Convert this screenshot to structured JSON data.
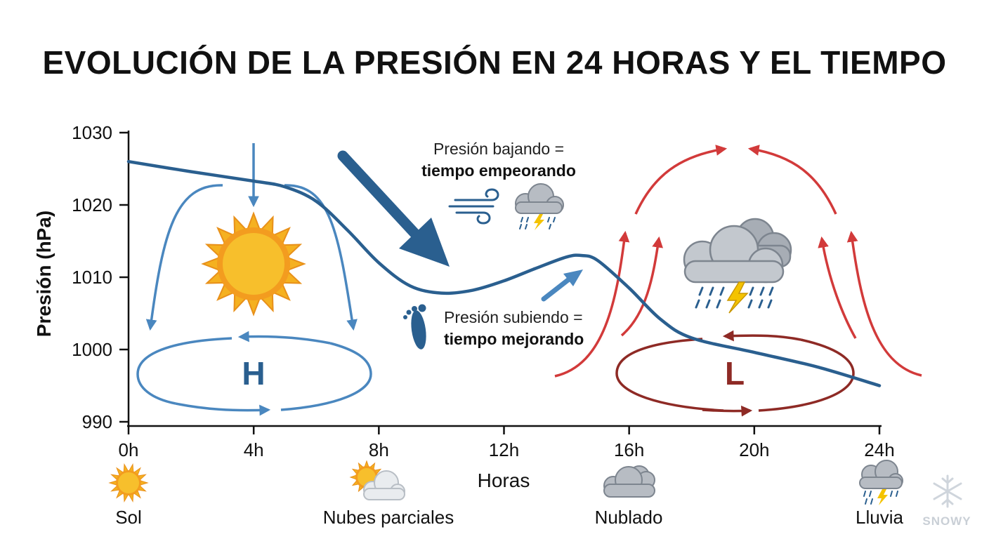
{
  "title": "EVOLUCIÓN DE LA PRESIÓN EN 24 HORAS Y EL TIEMPO",
  "chart_data": {
    "type": "line",
    "title": "EVOLUCIÓN DE LA PRESIÓN EN 24 HORAS Y EL TIEMPO",
    "xlabel": "Horas",
    "ylabel": "Presión (hPa)",
    "xlim": [
      0,
      24
    ],
    "ylim": [
      990,
      1030
    ],
    "x_ticks": [
      0,
      4,
      8,
      12,
      16,
      20,
      24
    ],
    "x_tick_labels": [
      "0h",
      "4h",
      "8h",
      "12h",
      "16h",
      "20h",
      "24h"
    ],
    "y_ticks": [
      990,
      1000,
      1010,
      1020,
      1030
    ],
    "y_tick_labels": [
      "990",
      "1000",
      "1010",
      "1020",
      "1030"
    ],
    "grid": false,
    "series": [
      {
        "color": "#2a5f8f",
        "x": [
          0,
          2,
          4,
          5,
          6,
          7,
          8,
          9,
          10,
          11,
          12,
          13,
          14,
          14.5,
          15,
          16,
          17,
          18,
          20,
          22,
          24
        ],
        "y": [
          1026,
          1024.6,
          1023.3,
          1022.5,
          1020.5,
          1016.5,
          1012,
          1008.8,
          1007.8,
          1008.2,
          1009.5,
          1011.2,
          1012.8,
          1013,
          1012.3,
          1008.5,
          1004.2,
          1001.6,
          999.6,
          997.6,
          995
        ]
      }
    ],
    "annotations": [
      {
        "line1": "Presión bajando =",
        "line2": "tiempo empeorando"
      },
      {
        "line1": "Presión subiendo =",
        "line2": "tiempo mejorando"
      },
      {
        "label": "H"
      },
      {
        "label": "L"
      }
    ],
    "weather_legend": [
      {
        "label": "Sol",
        "icon": "sun-icon"
      },
      {
        "label": "Nubes parciales",
        "icon": "partly-cloudy-icon"
      },
      {
        "label": "Nublado",
        "icon": "cloud-icon"
      },
      {
        "label": "Lluvia",
        "icon": "rain-cloud-icon"
      }
    ]
  },
  "watermark": "SNOWY",
  "colors": {
    "pressure_line": "#2a5f8f",
    "high_pressure": "#4a87bf",
    "low_pressure_arrows": "#d23a3a",
    "low_pressure_ring": "#8e2a25",
    "sun": "#f5b120",
    "cloud": "#9aa2ab"
  }
}
